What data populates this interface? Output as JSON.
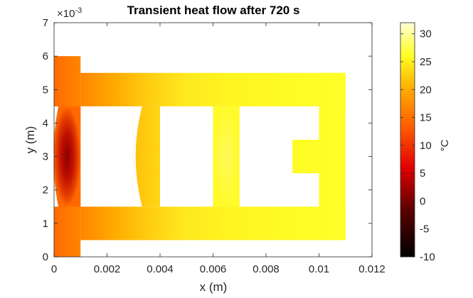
{
  "chart_data": {
    "type": "heatmap",
    "title": "Transient heat flow after 720 s",
    "xlabel": "x (m)",
    "ylabel": "y (m)",
    "xlim": [
      0,
      0.012
    ],
    "ylim": [
      0,
      0.007
    ],
    "y_exponent_label": "×10",
    "y_exponent_power": "-3",
    "x_ticks": [
      0,
      0.002,
      0.004,
      0.006,
      0.008,
      0.01,
      0.012
    ],
    "x_tick_labels": [
      "0",
      "0.002",
      "0.004",
      "0.006",
      "0.008",
      "0.01",
      "0.012"
    ],
    "y_ticks": [
      0,
      1,
      2,
      3,
      4,
      5,
      6,
      7
    ],
    "y_tick_labels": [
      "0",
      "1",
      "2",
      "3",
      "4",
      "5",
      "6",
      "7"
    ],
    "colorbar": {
      "label": "°C",
      "range": [
        -10,
        32
      ],
      "ticks": [
        -10,
        -5,
        0,
        5,
        10,
        15,
        20,
        25,
        30
      ],
      "tick_labels": [
        "-10",
        "-5",
        "0",
        "5",
        "10",
        "15",
        "20",
        "25",
        "30"
      ],
      "colormap": "hot"
    },
    "geometry": {
      "left_bar": {
        "x": [
          0,
          0.001
        ],
        "y": [
          0,
          0.006
        ]
      },
      "top_strip": {
        "x": [
          0.001,
          0.011
        ],
        "y": [
          0.0045,
          0.0055
        ]
      },
      "bottom_strip": {
        "x": [
          0.001,
          0.011
        ],
        "y": [
          0.0005,
          0.0015
        ]
      },
      "right_bar": {
        "x": [
          0.01,
          0.011
        ],
        "y": [
          0.0005,
          0.0055
        ]
      },
      "fins": [
        {
          "x": [
            0.003,
            0.004
          ],
          "y": [
            0.0015,
            0.0045
          ],
          "curved_left": true
        },
        {
          "x": [
            0.006,
            0.007
          ],
          "y": [
            0.0015,
            0.0045
          ],
          "curved_left": false
        },
        {
          "x": [
            0.009,
            0.01
          ],
          "y": [
            0.0025,
            0.0035
          ],
          "curved_left": false
        }
      ],
      "left_bulge_tip_x": 0.0,
      "left_bar_inner_edge_x": 0.001
    },
    "temperature_field": {
      "left_bar_core_min": -7,
      "left_bar_outer": 13,
      "x_0_001": 16,
      "x_0_003": 19,
      "x_0_005": 24,
      "x_0_007": 27,
      "x_0_011": 29,
      "fin_center_max": 31
    }
  }
}
